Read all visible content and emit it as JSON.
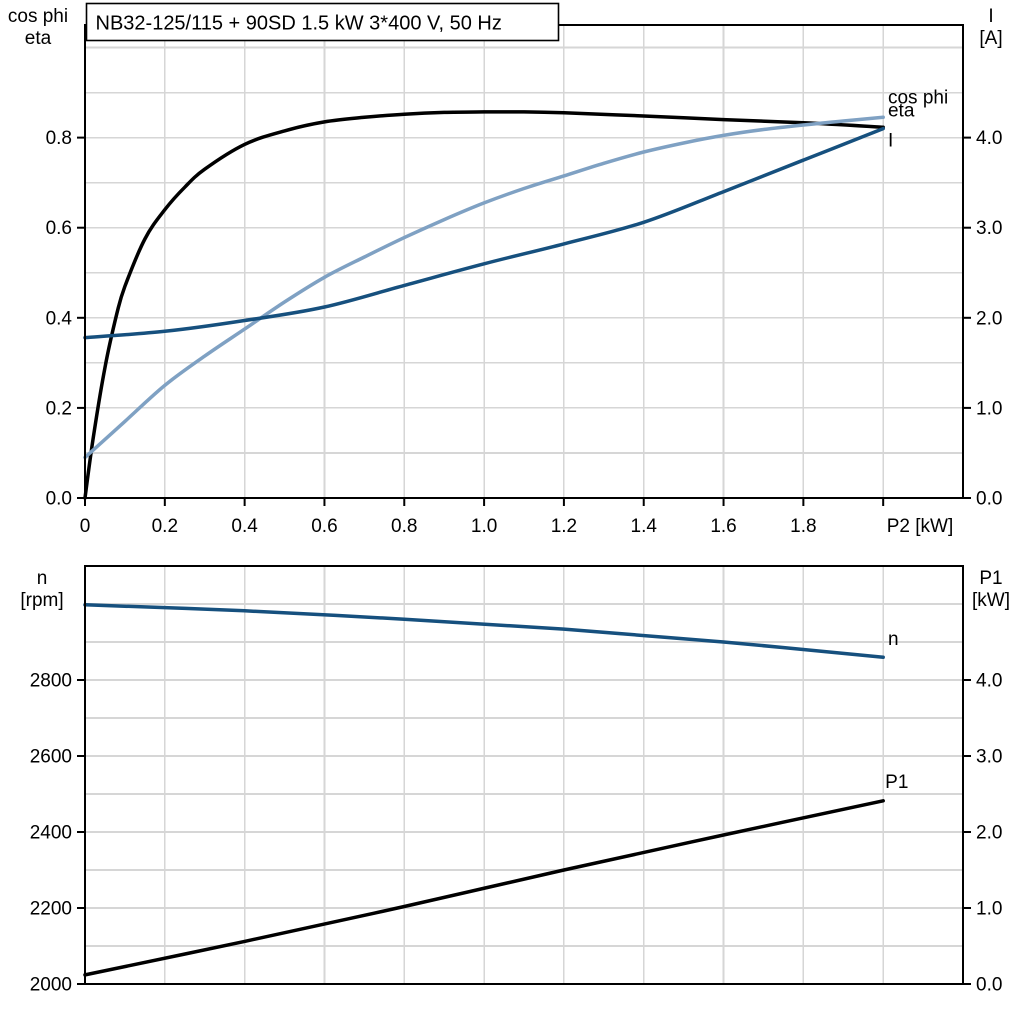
{
  "page": {
    "background": "#ffffff",
    "frame_color": "#000000",
    "grid_color": "#d6d6d6",
    "text_color": "#000000"
  },
  "chart_data": [
    {
      "type": "line",
      "title": "NB32-125/115 + 90SD   1.5 kW   3*400 V, 50 Hz",
      "left_axis": {
        "label_lines": [
          "cos phi",
          "eta"
        ],
        "min": 0,
        "max": 1.05,
        "grid_step": 0.1,
        "ticks": [
          {
            "v": 0.0,
            "t": "0.0"
          },
          {
            "v": 0.2,
            "t": "0.2"
          },
          {
            "v": 0.4,
            "t": "0.4"
          },
          {
            "v": 0.6,
            "t": "0.6"
          },
          {
            "v": 0.8,
            "t": "0.8"
          }
        ]
      },
      "right_axis": {
        "label_lines": [
          "I",
          "[A]"
        ],
        "min": 0,
        "max": 5.25,
        "ticks": [
          {
            "v": 0.0,
            "t": "0.0"
          },
          {
            "v": 1.0,
            "t": "1.0"
          },
          {
            "v": 2.0,
            "t": "2.0"
          },
          {
            "v": 3.0,
            "t": "3.0"
          },
          {
            "v": 4.0,
            "t": "4.0"
          }
        ]
      },
      "x_axis": {
        "label": "P2 [kW]",
        "min": 0,
        "max": 2.2,
        "grid_step": 0.2,
        "show_ticks": true,
        "ticks": [
          {
            "v": 0.0,
            "t": "0"
          },
          {
            "v": 0.2,
            "t": "0.2"
          },
          {
            "v": 0.4,
            "t": "0.4"
          },
          {
            "v": 0.6,
            "t": "0.6"
          },
          {
            "v": 0.8,
            "t": "0.8"
          },
          {
            "v": 1.0,
            "t": "1.0"
          },
          {
            "v": 1.2,
            "t": "1.2"
          },
          {
            "v": 1.4,
            "t": "1.4"
          },
          {
            "v": 1.6,
            "t": "1.6"
          },
          {
            "v": 1.8,
            "t": "1.8"
          },
          {
            "v": 2.0,
            "t": ""
          }
        ]
      },
      "series": [
        {
          "name": "eta",
          "axis": "left",
          "color": "#000000",
          "label": {
            "text": "eta",
            "x": 2.012,
            "y": 0.847
          },
          "points": [
            [
              0,
              0.0
            ],
            [
              0.02,
              0.13
            ],
            [
              0.05,
              0.29
            ],
            [
              0.08,
              0.41
            ],
            [
              0.1,
              0.47
            ],
            [
              0.15,
              0.575
            ],
            [
              0.2,
              0.64
            ],
            [
              0.25,
              0.69
            ],
            [
              0.3,
              0.73
            ],
            [
              0.4,
              0.785
            ],
            [
              0.5,
              0.815
            ],
            [
              0.6,
              0.835
            ],
            [
              0.7,
              0.845
            ],
            [
              0.8,
              0.852
            ],
            [
              0.9,
              0.856
            ],
            [
              1.0,
              0.857
            ],
            [
              1.1,
              0.857
            ],
            [
              1.2,
              0.855
            ],
            [
              1.4,
              0.848
            ],
            [
              1.6,
              0.84
            ],
            [
              1.8,
              0.833
            ],
            [
              2.0,
              0.823
            ]
          ]
        },
        {
          "name": "cos phi",
          "axis": "left",
          "color": "#7fa1c3",
          "label": {
            "text": "cos phi",
            "x": 2.012,
            "y": 0.876
          },
          "points": [
            [
              0,
              0.09
            ],
            [
              0.1,
              0.17
            ],
            [
              0.2,
              0.25
            ],
            [
              0.3,
              0.315
            ],
            [
              0.4,
              0.375
            ],
            [
              0.5,
              0.435
            ],
            [
              0.6,
              0.49
            ],
            [
              0.7,
              0.535
            ],
            [
              0.8,
              0.578
            ],
            [
              0.9,
              0.618
            ],
            [
              1.0,
              0.655
            ],
            [
              1.1,
              0.687
            ],
            [
              1.2,
              0.715
            ],
            [
              1.3,
              0.743
            ],
            [
              1.4,
              0.768
            ],
            [
              1.5,
              0.788
            ],
            [
              1.6,
              0.805
            ],
            [
              1.7,
              0.818
            ],
            [
              1.8,
              0.828
            ],
            [
              1.9,
              0.837
            ],
            [
              2.0,
              0.845
            ]
          ]
        },
        {
          "name": "I",
          "axis": "right",
          "color": "#16507e",
          "label": {
            "text": "I",
            "x": 2.012,
            "y": 3.9
          },
          "points": [
            [
              0,
              1.78
            ],
            [
              0.2,
              1.85
            ],
            [
              0.4,
              1.97
            ],
            [
              0.6,
              2.12
            ],
            [
              0.8,
              2.36
            ],
            [
              1.0,
              2.6
            ],
            [
              1.2,
              2.82
            ],
            [
              1.4,
              3.06
            ],
            [
              1.6,
              3.4
            ],
            [
              1.8,
              3.75
            ],
            [
              2.0,
              4.1
            ]
          ]
        }
      ]
    },
    {
      "type": "line",
      "title": null,
      "left_axis": {
        "label_lines": [
          "n",
          "[rpm]"
        ],
        "min": 2000,
        "max": 3100,
        "grid_step": 100,
        "ticks": [
          {
            "v": 2000,
            "t": "2000"
          },
          {
            "v": 2200,
            "t": "2200"
          },
          {
            "v": 2400,
            "t": "2400"
          },
          {
            "v": 2600,
            "t": "2600"
          },
          {
            "v": 2800,
            "t": "2800"
          }
        ]
      },
      "right_axis": {
        "label_lines": [
          "P1",
          "[kW]"
        ],
        "min": 0,
        "max": 5.5,
        "ticks": [
          {
            "v": 0.0,
            "t": "0.0"
          },
          {
            "v": 1.0,
            "t": "1.0"
          },
          {
            "v": 2.0,
            "t": "2.0"
          },
          {
            "v": 3.0,
            "t": "3.0"
          },
          {
            "v": 4.0,
            "t": "4.0"
          }
        ]
      },
      "x_axis": {
        "label": null,
        "min": 0,
        "max": 2.2,
        "grid_step": 0.2,
        "show_ticks": false,
        "ticks": []
      },
      "series": [
        {
          "name": "n",
          "axis": "left",
          "color": "#16507e",
          "label": {
            "text": "n",
            "x": 2.012,
            "y": 2892
          },
          "points": [
            [
              0,
              2998
            ],
            [
              0.4,
              2982
            ],
            [
              0.8,
              2960
            ],
            [
              1.2,
              2934
            ],
            [
              1.6,
              2900
            ],
            [
              2.0,
              2860
            ]
          ]
        },
        {
          "name": "P1",
          "axis": "right",
          "color": "#000000",
          "label": {
            "text": "P1",
            "x": 2.005,
            "y": 2.58
          },
          "points": [
            [
              0,
              0.12
            ],
            [
              0.4,
              0.56
            ],
            [
              0.8,
              1.02
            ],
            [
              1.2,
              1.5
            ],
            [
              1.6,
              1.96
            ],
            [
              2.0,
              2.41
            ]
          ]
        }
      ]
    }
  ]
}
